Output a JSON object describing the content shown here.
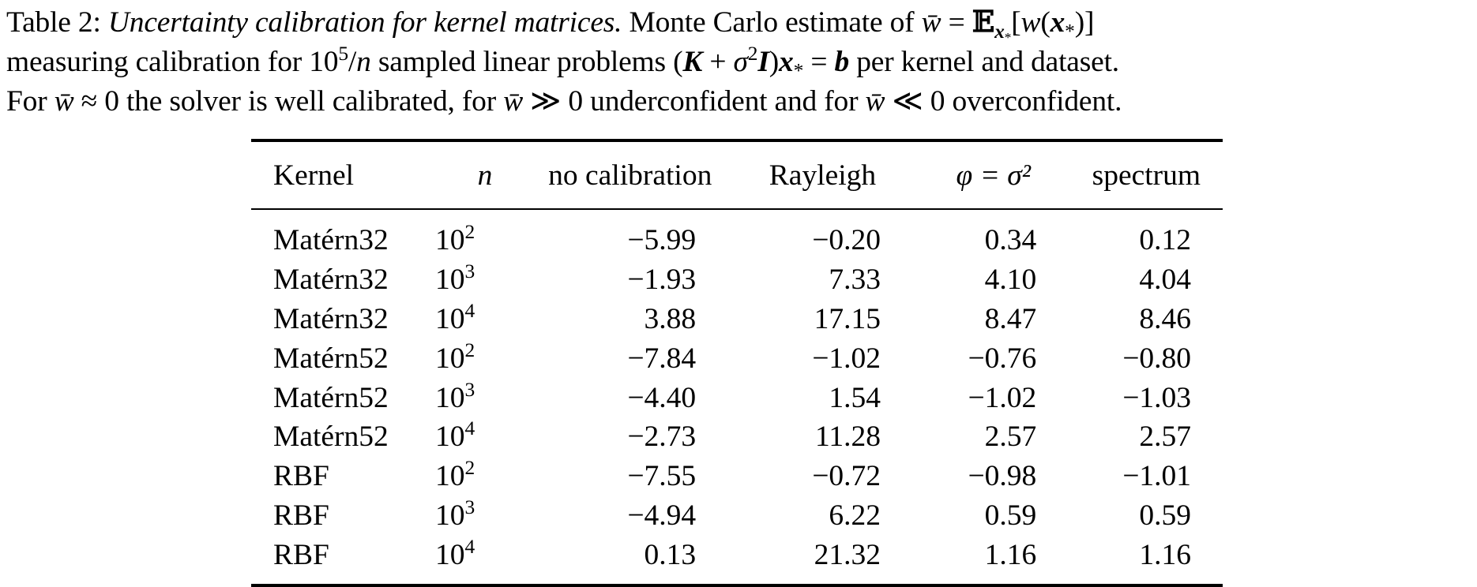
{
  "caption": {
    "label": "Table 2:",
    "title": "Uncertainty calibration for kernel matrices.",
    "line1_rest": "Monte Carlo estimate of",
    "line2_a": "measuring calibration for",
    "line2_b": "sampled linear problems",
    "line2_c": "per kernel and dataset.",
    "line3_a": "For",
    "line3_b": "the solver is well calibrated, for",
    "line3_c": "underconfident and for",
    "line3_d": "overconfident."
  },
  "table": {
    "headers": [
      "Kernel",
      "n",
      "no calibration",
      "Rayleigh",
      "φ = σ²",
      "spectrum"
    ],
    "rows": [
      {
        "kernel": "Matérn32",
        "n_exp": "2",
        "no_calibration": "−5.99",
        "rayleigh": "−0.20",
        "phi": "0.34",
        "spectrum": "0.12"
      },
      {
        "kernel": "Matérn32",
        "n_exp": "3",
        "no_calibration": "−1.93",
        "rayleigh": "7.33",
        "phi": "4.10",
        "spectrum": "4.04"
      },
      {
        "kernel": "Matérn32",
        "n_exp": "4",
        "no_calibration": "3.88",
        "rayleigh": "17.15",
        "phi": "8.47",
        "spectrum": "8.46"
      },
      {
        "kernel": "Matérn52",
        "n_exp": "2",
        "no_calibration": "−7.84",
        "rayleigh": "−1.02",
        "phi": "−0.76",
        "spectrum": "−0.80"
      },
      {
        "kernel": "Matérn52",
        "n_exp": "3",
        "no_calibration": "−4.40",
        "rayleigh": "1.54",
        "phi": "−1.02",
        "spectrum": "−1.03"
      },
      {
        "kernel": "Matérn52",
        "n_exp": "4",
        "no_calibration": "−2.73",
        "rayleigh": "11.28",
        "phi": "2.57",
        "spectrum": "2.57"
      },
      {
        "kernel": "RBF",
        "n_exp": "2",
        "no_calibration": "−7.55",
        "rayleigh": "−0.72",
        "phi": "−0.98",
        "spectrum": "−1.01"
      },
      {
        "kernel": "RBF",
        "n_exp": "3",
        "no_calibration": "−4.94",
        "rayleigh": "6.22",
        "phi": "0.59",
        "spectrum": "0.59"
      },
      {
        "kernel": "RBF",
        "n_exp": "4",
        "no_calibration": "0.13",
        "rayleigh": "21.32",
        "phi": "1.16",
        "spectrum": "1.16"
      }
    ]
  }
}
